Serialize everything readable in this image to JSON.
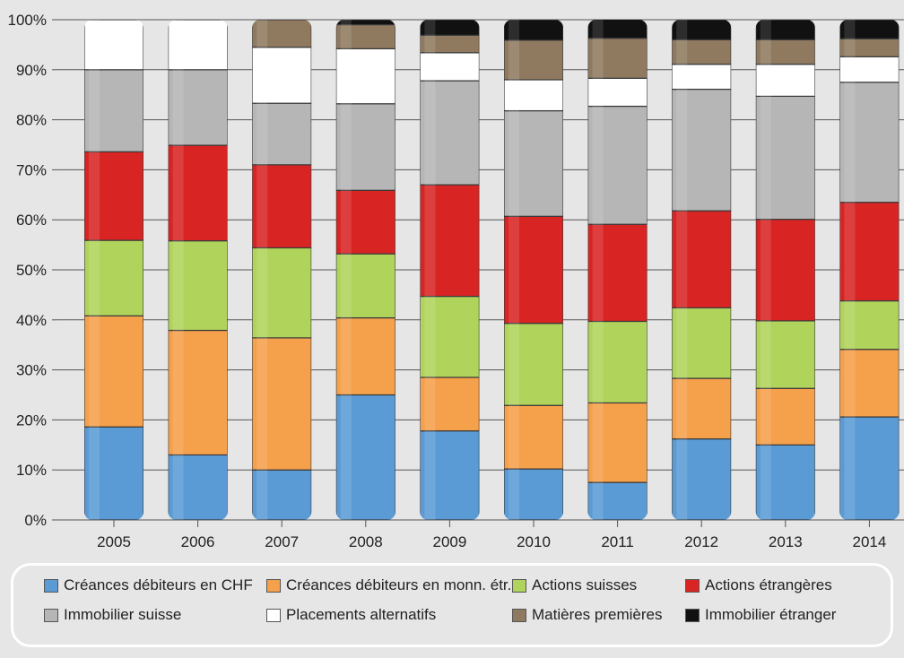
{
  "chart_data": {
    "type": "bar",
    "stacked": true,
    "categories": [
      "2005",
      "2006",
      "2007",
      "2008",
      "2009",
      "2010",
      "2011",
      "2012",
      "2013",
      "2014"
    ],
    "ylim": [
      0,
      100
    ],
    "yticks": [
      "0%",
      "10%",
      "20%",
      "30%",
      "40%",
      "50%",
      "60%",
      "70%",
      "80%",
      "90%",
      "100%"
    ],
    "grid": true,
    "legend_position": "bottom",
    "series": [
      {
        "name": "Créances débiteurs en CHF",
        "color": "#5b9bd5",
        "values": [
          18.6,
          13.0,
          10.0,
          25.0,
          17.8,
          10.2,
          7.5,
          16.2,
          15.0,
          20.6
        ]
      },
      {
        "name": "Créances débiteurs en monn. étr.",
        "color": "#f5a04a",
        "values": [
          22.2,
          24.9,
          26.4,
          15.4,
          10.7,
          12.7,
          15.9,
          12.1,
          11.3,
          13.5
        ]
      },
      {
        "name": "Actions suisses",
        "color": "#b0d35b",
        "values": [
          15.1,
          17.9,
          18.0,
          12.8,
          16.2,
          16.4,
          16.3,
          14.1,
          13.5,
          9.7
        ]
      },
      {
        "name": "Actions étrangères",
        "color": "#d92424",
        "values": [
          17.7,
          19.1,
          16.6,
          12.7,
          22.3,
          21.4,
          19.4,
          19.4,
          20.3,
          19.7
        ]
      },
      {
        "name": "Immobilier suisse",
        "color": "#b6b6b6",
        "values": [
          16.4,
          15.1,
          12.3,
          17.3,
          20.8,
          21.1,
          23.6,
          24.3,
          24.6,
          24.0
        ]
      },
      {
        "name": "Placements alternatifs",
        "color": "#ffffff",
        "values": [
          10.0,
          10.0,
          11.2,
          11.0,
          5.6,
          6.2,
          5.6,
          5.0,
          6.4,
          5.1
        ]
      },
      {
        "name": "Matières premières",
        "color": "#8f7a60",
        "values": [
          0,
          0,
          5.5,
          4.8,
          3.5,
          7.9,
          8.0,
          4.9,
          4.9,
          3.6
        ]
      },
      {
        "name": "Immobilier étranger",
        "color": "#111111",
        "values": [
          0,
          0,
          0,
          1.0,
          3.1,
          4.1,
          4.0,
          4.0,
          4.0,
          3.8
        ]
      }
    ]
  },
  "legend": {
    "items": [
      {
        "label": "Créances débiteurs en CHF",
        "color": "#5b9bd5"
      },
      {
        "label": "Créances débiteurs en monn. étr.",
        "color": "#f5a04a"
      },
      {
        "label": "Actions suisses",
        "color": "#b0d35b"
      },
      {
        "label": "Actions étrangères",
        "color": "#d92424"
      },
      {
        "label": "Immobilier suisse",
        "color": "#b6b6b6"
      },
      {
        "label": "Placements alternatifs",
        "color": "#ffffff"
      },
      {
        "label": "Matières premières",
        "color": "#8f7a60"
      },
      {
        "label": "Immobilier étranger",
        "color": "#111111"
      }
    ]
  }
}
